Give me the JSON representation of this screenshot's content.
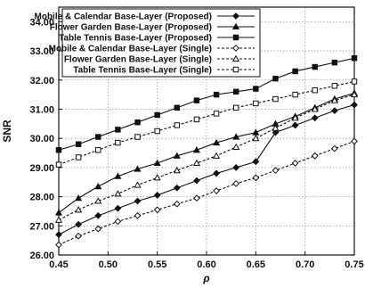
{
  "chart_data": {
    "type": "line",
    "xlabel": "ρ",
    "ylabel": "SNR",
    "xlim": [
      0.45,
      0.75
    ],
    "ylim": [
      26.0,
      34.5
    ],
    "x_ticks": [
      "0.45",
      "0.50",
      "0.55",
      "0.60",
      "0.65",
      "0.70",
      "0.75"
    ],
    "y_ticks": [
      "26.00",
      "27.00",
      "28.00",
      "29.00",
      "30.00",
      "31.00",
      "32.00",
      "33.00",
      "34.00"
    ],
    "grid": true,
    "legend_position": "top-left",
    "x": [
      0.45,
      0.47,
      0.49,
      0.51,
      0.53,
      0.55,
      0.57,
      0.59,
      0.61,
      0.63,
      0.65,
      0.67,
      0.69,
      0.71,
      0.73,
      0.75
    ],
    "series": [
      {
        "name": "Mobile & Calendar Base-Layer (Proposed)",
        "marker": "diamond-filled",
        "dash": "solid",
        "values": [
          26.7,
          27.05,
          27.35,
          27.6,
          27.85,
          28.05,
          28.3,
          28.55,
          28.8,
          29.0,
          29.2,
          30.2,
          30.45,
          30.7,
          30.95,
          31.15
        ]
      },
      {
        "name": "Flower Garden Base-Layer (Proposed)",
        "marker": "triangle-filled",
        "dash": "solid",
        "values": [
          27.45,
          27.95,
          28.35,
          28.7,
          28.95,
          29.15,
          29.4,
          29.6,
          29.85,
          30.05,
          30.2,
          30.5,
          30.75,
          31.05,
          31.35,
          31.55
        ]
      },
      {
        "name": "Table Tennis Base-Layer (Proposed)",
        "marker": "square-filled",
        "dash": "solid",
        "values": [
          29.6,
          29.8,
          30.05,
          30.3,
          30.55,
          30.8,
          31.05,
          31.3,
          31.5,
          31.6,
          31.7,
          32.05,
          32.3,
          32.45,
          32.6,
          32.75
        ]
      },
      {
        "name": "Mobile & Calendar Base-Layer (Single)",
        "marker": "diamond-open",
        "dash": "dashed",
        "values": [
          26.35,
          26.65,
          26.9,
          27.15,
          27.35,
          27.55,
          27.75,
          27.95,
          28.2,
          28.45,
          28.65,
          28.9,
          29.15,
          29.4,
          29.65,
          29.9
        ]
      },
      {
        "name": "Flower Garden Base-Layer (Single)",
        "marker": "triangle-open",
        "dash": "dashed",
        "values": [
          27.2,
          27.55,
          27.85,
          28.1,
          28.4,
          28.65,
          28.9,
          29.15,
          29.4,
          29.7,
          30.0,
          30.35,
          30.7,
          31.0,
          31.3,
          31.5
        ]
      },
      {
        "name": "Table Tennis Base-Layer (Single)",
        "marker": "square-open",
        "dash": "dashed",
        "values": [
          29.1,
          29.35,
          29.6,
          29.85,
          30.05,
          30.25,
          30.45,
          30.65,
          30.85,
          31.05,
          31.2,
          31.35,
          31.5,
          31.65,
          31.8,
          31.95
        ]
      }
    ]
  }
}
